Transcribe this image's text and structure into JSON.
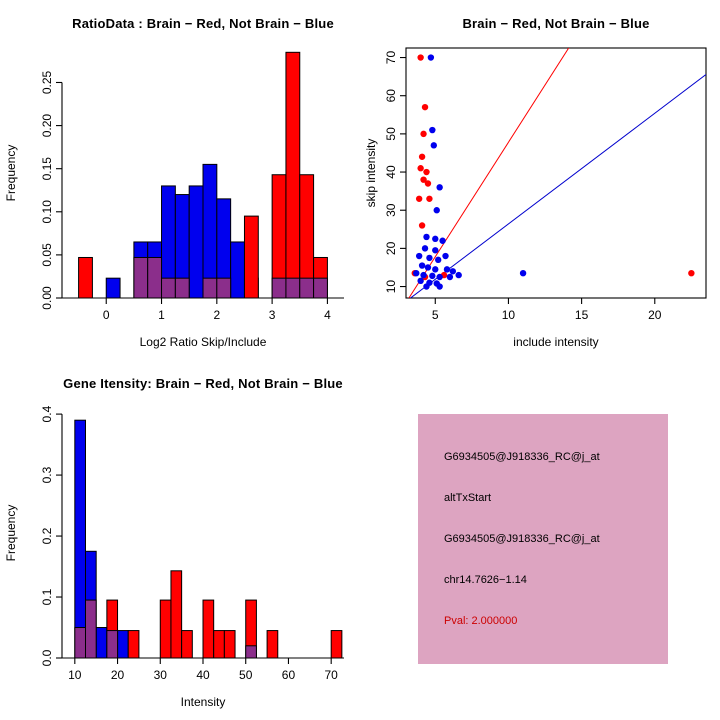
{
  "figure": {
    "background": "#FFFFFF"
  },
  "chart_data": [
    {
      "type": "bar",
      "title": "RatioData : Brain − Red, Not Brain − Blue",
      "xlabel": "Log2 Ratio Skip/Include",
      "ylabel": "Frequency",
      "xlim": [
        -0.8,
        4.3
      ],
      "ylim": [
        0,
        0.29
      ],
      "bin_width": 0.25,
      "grid": false,
      "xticks": [
        {
          "v": 0,
          "label": "0"
        },
        {
          "v": 1,
          "label": "1"
        },
        {
          "v": 2,
          "label": "2"
        },
        {
          "v": 3,
          "label": "3"
        },
        {
          "v": 4,
          "label": "4"
        }
      ],
      "yticks": [
        {
          "v": 0,
          "label": "0.00"
        },
        {
          "v": 0.05,
          "label": "0.05"
        },
        {
          "v": 0.1,
          "label": "0.10"
        },
        {
          "v": 0.15,
          "label": "0.15"
        },
        {
          "v": 0.2,
          "label": "0.20"
        },
        {
          "v": 0.25,
          "label": "0.25"
        }
      ],
      "series": [
        {
          "name": "not-brain-blue",
          "color": "#0000EE",
          "bars": [
            [
              0,
              0.023
            ],
            [
              0.5,
              0.065
            ],
            [
              0.75,
              0.065
            ],
            [
              1,
              0.13
            ],
            [
              1.25,
              0.12
            ],
            [
              1.5,
              0.13
            ],
            [
              1.75,
              0.155
            ],
            [
              2,
              0.115
            ],
            [
              2.25,
              0.065
            ],
            [
              2.5,
              0.023
            ]
          ]
        },
        {
          "name": "brain-red",
          "color": "#FF0000",
          "bars": [
            [
              -0.5,
              0.047
            ],
            [
              2.5,
              0.095
            ],
            [
              3,
              0.143
            ],
            [
              3.25,
              0.285
            ],
            [
              3.5,
              0.143
            ],
            [
              3.75,
              0.047
            ]
          ]
        },
        {
          "name": "overlap-purple",
          "color": "#8B2E8B",
          "bars": [
            [
              0.5,
              0.047
            ],
            [
              0.75,
              0.047
            ],
            [
              1,
              0.023
            ],
            [
              1.25,
              0.023
            ],
            [
              1.75,
              0.023
            ],
            [
              2,
              0.023
            ],
            [
              3,
              0.023
            ],
            [
              3.25,
              0.023
            ],
            [
              3.5,
              0.023
            ],
            [
              3.75,
              0.023
            ]
          ]
        }
      ]
    },
    {
      "type": "scatter",
      "title": "Brain − Red, Not Brain − Blue",
      "xlabel": "include intensity",
      "ylabel": "skip intensity",
      "xlim": [
        3,
        23.5
      ],
      "ylim": [
        7,
        72.5
      ],
      "grid": false,
      "xticks": [
        {
          "v": 5,
          "label": "5"
        },
        {
          "v": 10,
          "label": "10"
        },
        {
          "v": 15,
          "label": "15"
        },
        {
          "v": 20,
          "label": "20"
        }
      ],
      "yticks": [
        {
          "v": 10,
          "label": "10"
        },
        {
          "v": 20,
          "label": "20"
        },
        {
          "v": 30,
          "label": "30"
        },
        {
          "v": 40,
          "label": "40"
        },
        {
          "v": 50,
          "label": "50"
        },
        {
          "v": 60,
          "label": "60"
        },
        {
          "v": 70,
          "label": "70"
        }
      ],
      "series": [
        {
          "name": "brain-red",
          "color": "#FF0000",
          "points": [
            [
              4.0,
              70
            ],
            [
              4.3,
              57
            ],
            [
              4.2,
              50
            ],
            [
              4.1,
              44
            ],
            [
              4.0,
              41
            ],
            [
              4.4,
              40
            ],
            [
              4.2,
              38
            ],
            [
              4.5,
              37
            ],
            [
              3.9,
              33
            ],
            [
              4.6,
              33
            ],
            [
              4.1,
              26
            ],
            [
              3.6,
              13.5
            ],
            [
              5.6,
              13
            ],
            [
              22.5,
              13.5
            ],
            [
              4.3,
              12.5
            ]
          ]
        },
        {
          "name": "not-brain-blue",
          "color": "#0000EE",
          "points": [
            [
              4.7,
              70
            ],
            [
              4.8,
              51
            ],
            [
              4.9,
              47
            ],
            [
              5.3,
              36
            ],
            [
              5.1,
              30
            ],
            [
              4.4,
              23
            ],
            [
              5.0,
              22.5
            ],
            [
              5.5,
              22
            ],
            [
              4.3,
              20
            ],
            [
              5.0,
              19.5
            ],
            [
              3.9,
              18
            ],
            [
              4.6,
              17.5
            ],
            [
              5.2,
              17
            ],
            [
              5.7,
              18
            ],
            [
              4.1,
              15.5
            ],
            [
              4.5,
              15
            ],
            [
              5.0,
              14.5
            ],
            [
              5.8,
              14.5
            ],
            [
              6.2,
              14
            ],
            [
              3.7,
              13.5
            ],
            [
              4.2,
              13
            ],
            [
              4.8,
              12.8
            ],
            [
              5.3,
              12.5
            ],
            [
              6.0,
              12.5
            ],
            [
              6.6,
              13
            ],
            [
              4.0,
              11.5
            ],
            [
              4.6,
              11
            ],
            [
              5.1,
              10.8
            ],
            [
              4.4,
              10
            ],
            [
              5.3,
              10
            ],
            [
              11.0,
              13.5
            ]
          ]
        }
      ],
      "lines": [
        {
          "name": "brain-fit-line",
          "color": "#FF0000",
          "slope": 6.0,
          "intercept": -12.2
        },
        {
          "name": "not-brain-fit-line",
          "color": "#0000CD",
          "slope": 2.9,
          "intercept": -2.6
        }
      ]
    },
    {
      "type": "bar",
      "title": "Gene Itensity: Brain − Red, Not Brain − Blue",
      "xlabel": "Intensity",
      "ylabel": "Frequency",
      "xlim": [
        7,
        73
      ],
      "ylim": [
        0,
        0.41
      ],
      "bin_width": 2.5,
      "grid": false,
      "xticks": [
        {
          "v": 10,
          "label": "10"
        },
        {
          "v": 20,
          "label": "20"
        },
        {
          "v": 30,
          "label": "30"
        },
        {
          "v": 40,
          "label": "40"
        },
        {
          "v": 50,
          "label": "50"
        },
        {
          "v": 60,
          "label": "60"
        },
        {
          "v": 70,
          "label": "70"
        }
      ],
      "yticks": [
        {
          "v": 0,
          "label": "0.0"
        },
        {
          "v": 0.1,
          "label": "0.1"
        },
        {
          "v": 0.2,
          "label": "0.2"
        },
        {
          "v": 0.3,
          "label": "0.3"
        },
        {
          "v": 0.4,
          "label": "0.4"
        }
      ],
      "series": [
        {
          "name": "not-brain-blue",
          "color": "#0000EE",
          "bars": [
            [
              10,
              0.39
            ],
            [
              12.5,
              0.175
            ],
            [
              15,
              0.05
            ],
            [
              20,
              0.045
            ]
          ]
        },
        {
          "name": "brain-red",
          "color": "#FF0000",
          "bars": [
            [
              17.5,
              0.095
            ],
            [
              22.5,
              0.045
            ],
            [
              30,
              0.095
            ],
            [
              32.5,
              0.143
            ],
            [
              35,
              0.045
            ],
            [
              40,
              0.095
            ],
            [
              42.5,
              0.045
            ],
            [
              45,
              0.045
            ],
            [
              50,
              0.095
            ],
            [
              55,
              0.045
            ],
            [
              70,
              0.045
            ]
          ]
        },
        {
          "name": "overlap-purple",
          "color": "#8B2E8B",
          "bars": [
            [
              10,
              0.05
            ],
            [
              12.5,
              0.095
            ],
            [
              17.5,
              0.045
            ],
            [
              50,
              0.02
            ]
          ]
        }
      ]
    }
  ],
  "info_panel": {
    "background": "#DDA4C1",
    "lines": [
      {
        "text": "G6934505@J918336_RC@j_at",
        "color": "#000000"
      },
      {
        "text": "altTxStart",
        "color": "#000000"
      },
      {
        "text": "G6934505@J918336_RC@j_at",
        "color": "#000000"
      },
      {
        "text": "chr14.7626−1.14",
        "color": "#000000"
      },
      {
        "text": "Pval: 2.000000",
        "color": "#CC0000"
      }
    ]
  }
}
